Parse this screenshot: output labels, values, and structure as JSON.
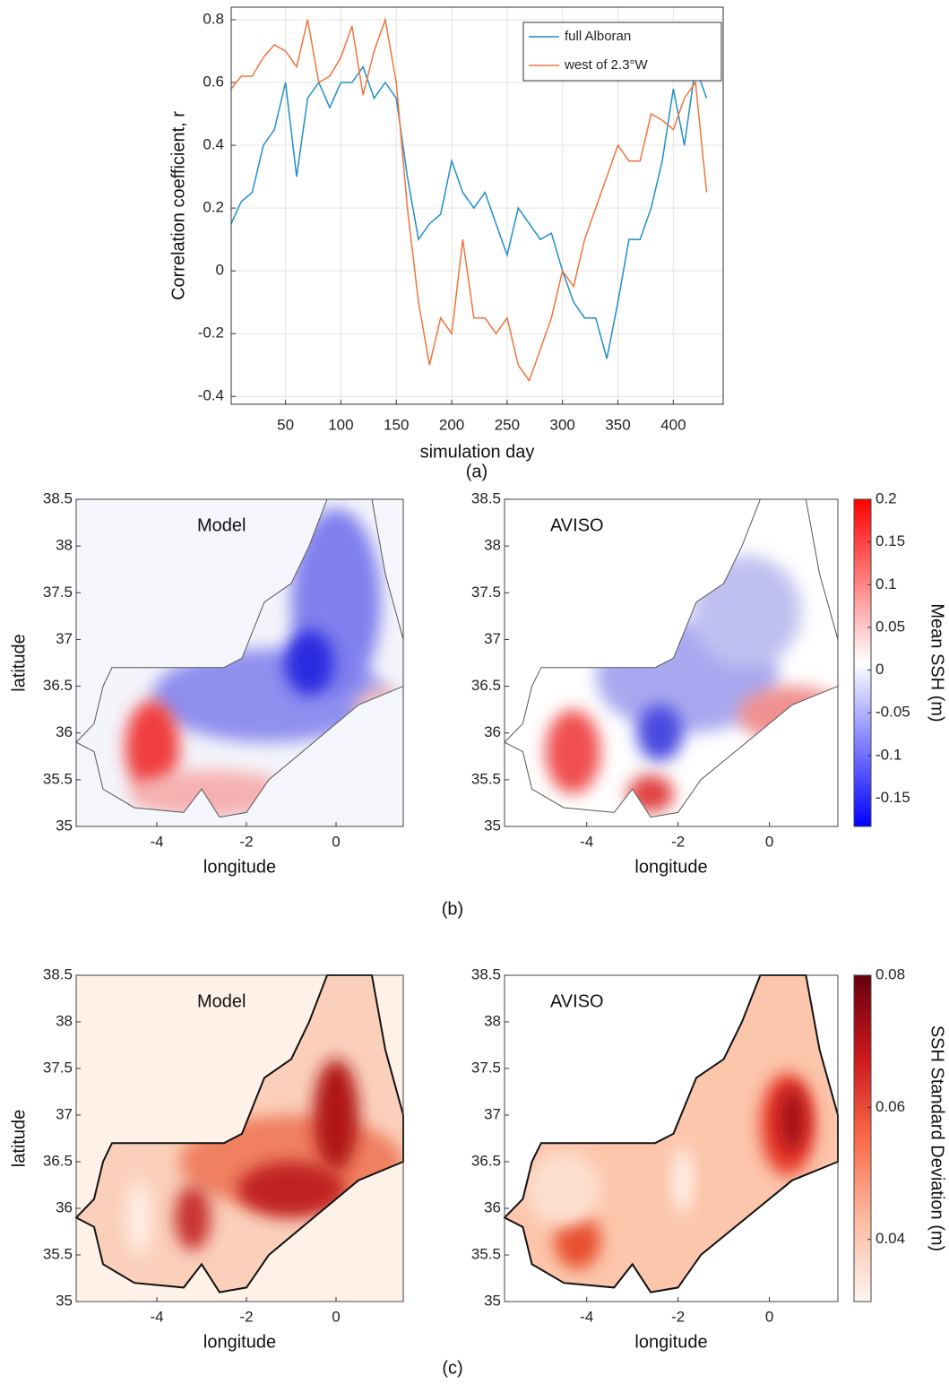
{
  "chart_data": [
    {
      "type": "line",
      "xlabel": "simulation day",
      "ylabel": "Correlation coefficient, r",
      "caption": "(a)",
      "x": [
        1,
        10,
        20,
        30,
        40,
        50,
        60,
        70,
        80,
        90,
        100,
        110,
        120,
        130,
        140,
        150,
        160,
        170,
        180,
        190,
        200,
        210,
        220,
        230,
        240,
        250,
        260,
        270,
        280,
        290,
        300,
        310,
        320,
        330,
        340,
        350,
        360,
        370,
        380,
        390,
        400,
        410,
        420,
        430
      ],
      "series": [
        {
          "name": "full Alboran",
          "color": "#1f8fc9",
          "values": [
            0.15,
            0.22,
            0.25,
            0.4,
            0.45,
            0.6,
            0.3,
            0.55,
            0.6,
            0.52,
            0.6,
            0.6,
            0.65,
            0.55,
            0.6,
            0.55,
            0.3,
            0.1,
            0.15,
            0.18,
            0.35,
            0.25,
            0.2,
            0.25,
            0.15,
            0.05,
            0.2,
            0.15,
            0.1,
            0.12,
            0.0,
            -0.1,
            -0.15,
            -0.15,
            -0.28,
            -0.1,
            0.1,
            0.1,
            0.2,
            0.35,
            0.58,
            0.4,
            0.65,
            0.55
          ]
        },
        {
          "name": "west of 2.3°W",
          "color": "#f0743e",
          "values": [
            0.58,
            0.62,
            0.62,
            0.68,
            0.72,
            0.7,
            0.65,
            0.8,
            0.6,
            0.62,
            0.68,
            0.78,
            0.56,
            0.7,
            0.8,
            0.6,
            0.2,
            -0.1,
            -0.3,
            -0.15,
            -0.2,
            0.1,
            -0.15,
            -0.15,
            -0.2,
            -0.15,
            -0.3,
            -0.35,
            -0.25,
            -0.15,
            0.0,
            -0.05,
            0.1,
            0.2,
            0.3,
            0.4,
            0.35,
            0.35,
            0.5,
            0.48,
            0.45,
            0.55,
            0.6,
            0.25
          ]
        }
      ],
      "xlim": [
        1,
        445
      ],
      "ylim": [
        -0.425,
        0.84
      ],
      "xticks": [
        50,
        100,
        150,
        200,
        250,
        300,
        350,
        400
      ],
      "yticks": [
        -0.4,
        -0.2,
        0,
        0.2,
        0.4,
        0.6,
        0.8
      ],
      "grid": true,
      "legend": "upper right"
    },
    {
      "type": "contour",
      "caption": "(b)",
      "colorbar": {
        "label": "Mean SSH (m)",
        "lim": [
          -0.183,
          0.2
        ],
        "ticks": [
          -0.15,
          -0.1,
          -0.05,
          0,
          0.05,
          0.1,
          0.15,
          0.2
        ],
        "colors": [
          "#0000ff",
          "#ffffff",
          "#ff0000"
        ]
      },
      "panels": [
        {
          "title": "Model",
          "xlabel": "longitude",
          "ylabel": "latitude",
          "xlim": [
            -5.8,
            1.5
          ],
          "ylim": [
            35,
            38.5
          ],
          "xticks": [
            -4,
            -2,
            0
          ],
          "yticks": [
            35,
            35.5,
            36,
            36.5,
            37,
            37.5,
            38,
            38.5
          ]
        },
        {
          "title": "AVISO",
          "xlabel": "longitude",
          "xlim": [
            -5.8,
            1.5
          ],
          "ylim": [
            35,
            38.5
          ],
          "xticks": [
            -4,
            -2,
            0
          ],
          "yticks": [
            35,
            35.5,
            36,
            36.5,
            37,
            37.5,
            38,
            38.5
          ]
        }
      ]
    },
    {
      "type": "contour",
      "caption": "(c)",
      "colorbar": {
        "label": "SSH Standard Deviation (m)",
        "lim": [
          0.0306,
          0.08
        ],
        "ticks": [
          0.04,
          0.06,
          0.08
        ],
        "colors": [
          "#fff5f0",
          "#fcbba1",
          "#fb6a4a",
          "#cb181d",
          "#67000d"
        ]
      },
      "panels": [
        {
          "title": "Model",
          "xlabel": "longitude",
          "ylabel": "latitude",
          "xlim": [
            -5.8,
            1.5
          ],
          "ylim": [
            35,
            38.5
          ],
          "xticks": [
            -4,
            -2,
            0
          ],
          "yticks": [
            35,
            35.5,
            36,
            36.5,
            37,
            37.5,
            38,
            38.5
          ]
        },
        {
          "title": "AVISO",
          "xlabel": "longitude",
          "xlim": [
            -5.8,
            1.5
          ],
          "ylim": [
            35,
            38.5
          ],
          "xticks": [
            -4,
            -2,
            0
          ],
          "yticks": [
            35,
            35.5,
            36,
            36.5,
            37,
            37.5,
            38,
            38.5
          ]
        }
      ]
    }
  ]
}
